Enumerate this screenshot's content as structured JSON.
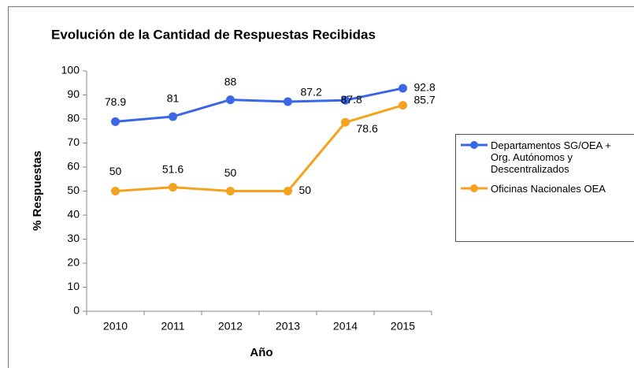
{
  "chart_data": {
    "type": "line",
    "title": "Evolución de la Cantidad de Respuestas Recibidas",
    "xlabel": "Año",
    "ylabel": "% Respuestas",
    "categories": [
      "2010",
      "2011",
      "2012",
      "2013",
      "2014",
      "2015"
    ],
    "series": [
      {
        "name": "Departamentos SG/OEA + Org. Autónomos y Descentralizados",
        "color": "#3a66e8",
        "values": [
          78.9,
          81,
          88,
          87.2,
          87.8,
          92.8
        ]
      },
      {
        "name": "Oficinas Nacionales OEA",
        "color": "#f5a21e",
        "values": [
          50,
          51.6,
          50,
          50,
          78.6,
          85.7
        ]
      }
    ],
    "ylim": [
      0,
      100
    ],
    "yticks": [
      0,
      10,
      20,
      30,
      40,
      50,
      60,
      70,
      80,
      90,
      100
    ],
    "grid": false,
    "legend": "right"
  }
}
